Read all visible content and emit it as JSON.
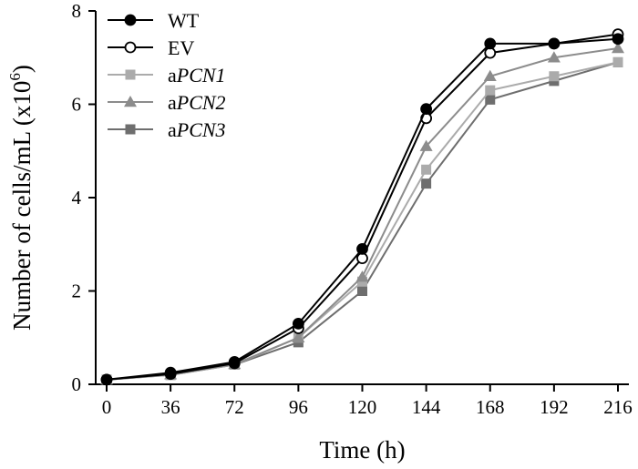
{
  "chart_data": {
    "type": "line",
    "x": [
      0,
      36,
      72,
      96,
      120,
      144,
      168,
      192,
      216
    ],
    "xlabel": "Time (h)",
    "ylabel_main": "Number of cells/mL (x10",
    "ylabel_sup": "6",
    "ylabel_close": ")",
    "ylim": [
      0,
      8
    ],
    "yticks": [
      0,
      2,
      4,
      6,
      8
    ],
    "grid": false,
    "legend_position": "top-left",
    "series": [
      {
        "legend_prefix": "",
        "legend_gene": "",
        "legend_plain": "WT",
        "marker": "circle",
        "filled": true,
        "color": "#000000",
        "values": [
          0.1,
          0.25,
          0.48,
          1.3,
          2.9,
          5.9,
          7.3,
          7.3,
          7.4
        ]
      },
      {
        "legend_prefix": "",
        "legend_gene": "",
        "legend_plain": "EV",
        "marker": "circle",
        "filled": false,
        "color": "#000000",
        "values": [
          0.1,
          0.22,
          0.45,
          1.2,
          2.7,
          5.7,
          7.1,
          7.3,
          7.5
        ]
      },
      {
        "legend_prefix": "a",
        "legend_gene": "PCN1",
        "legend_plain": "",
        "marker": "square",
        "filled": true,
        "color": "#ababab",
        "values": [
          0.1,
          0.2,
          0.42,
          1.0,
          2.2,
          4.6,
          6.3,
          6.6,
          6.9
        ]
      },
      {
        "legend_prefix": "a",
        "legend_gene": "PCN2",
        "legend_plain": "",
        "marker": "triangle",
        "filled": true,
        "color": "#8c8c8c",
        "values": [
          0.1,
          0.21,
          0.43,
          1.0,
          2.3,
          5.1,
          6.6,
          7.0,
          7.2
        ]
      },
      {
        "legend_prefix": "a",
        "legend_gene": "PCN3",
        "legend_plain": "",
        "marker": "square",
        "filled": true,
        "color": "#6e6e6e",
        "values": [
          0.1,
          0.2,
          0.42,
          0.9,
          2.0,
          4.3,
          6.1,
          6.5,
          6.9
        ]
      }
    ]
  }
}
